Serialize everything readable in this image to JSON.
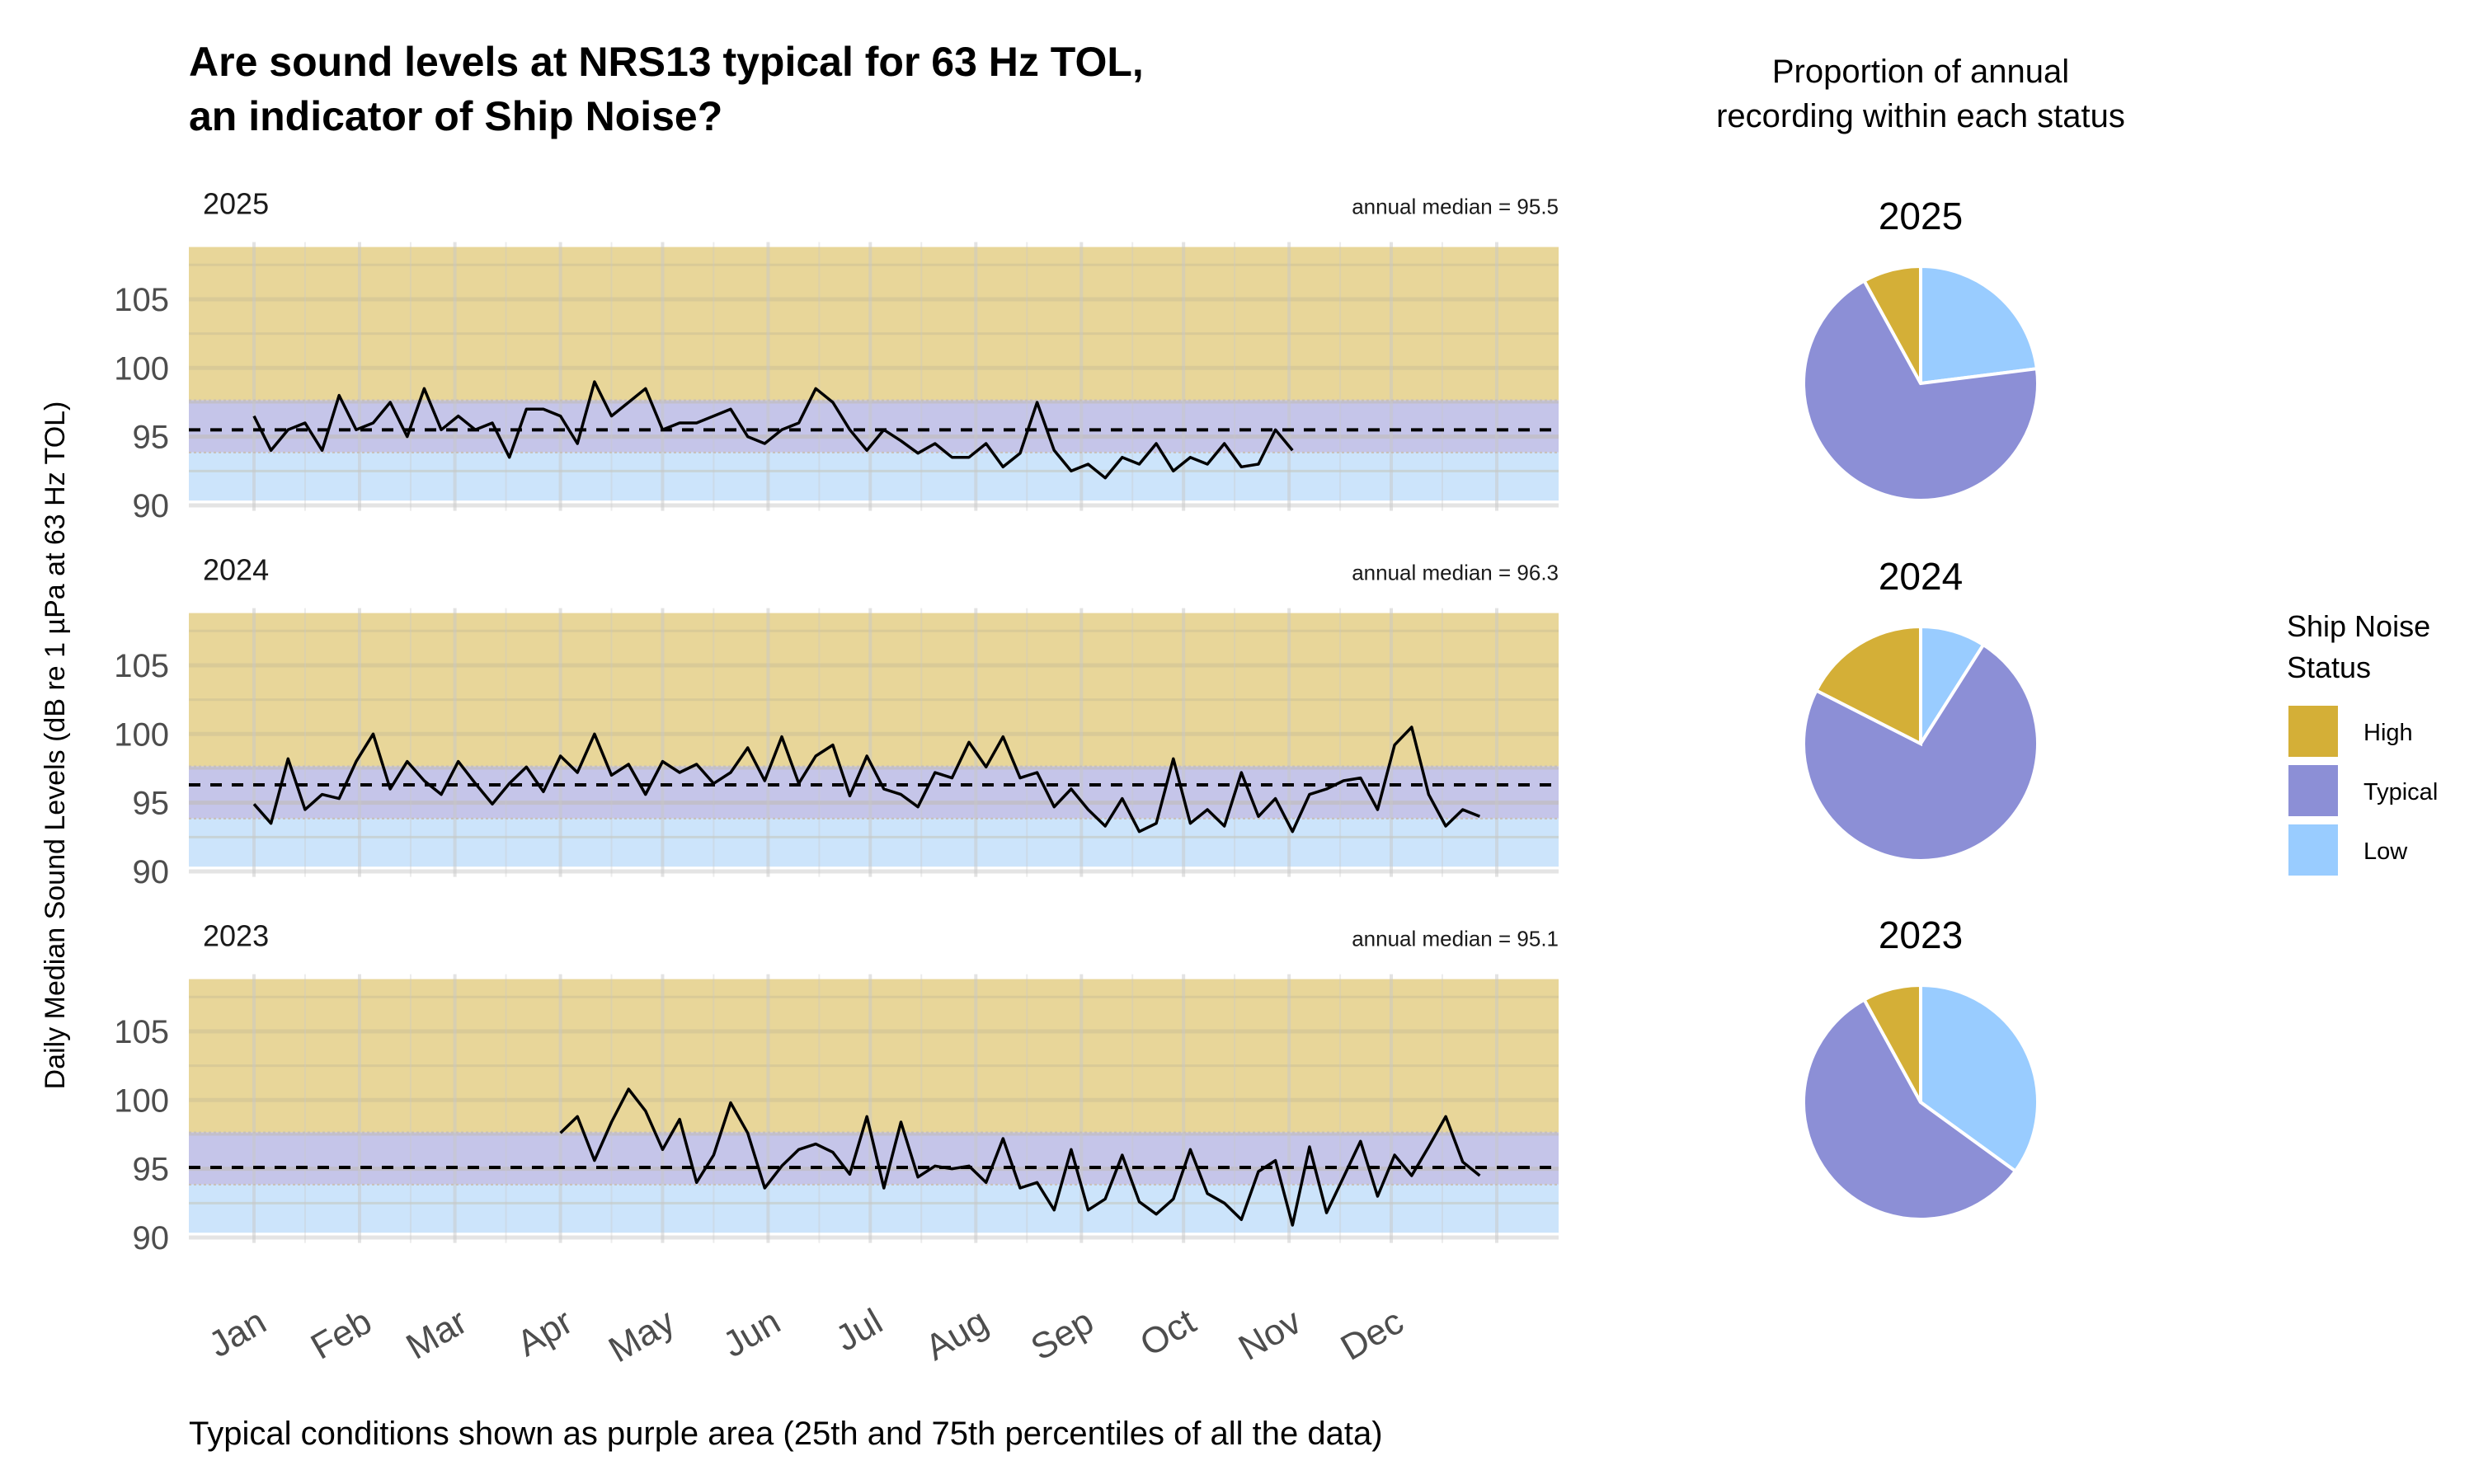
{
  "title_lines": [
    "Are sound levels at NRS13 typical for 63 Hz TOL,",
    "an indicator of Ship Noise?"
  ],
  "caption": "Typical conditions shown as purple area (25th and 75th percentiles of all the data)",
  "pie_header_lines": [
    "Proportion of annual",
    "recording within each status"
  ],
  "colors": {
    "high": "#D4AF37",
    "typical": "#8C8FD6",
    "low": "#99CCFF",
    "band_high": "#E8D699",
    "band_typical": "#C5C5E9",
    "band_low": "#CCE4FB",
    "line": "#000000"
  },
  "legend": {
    "title_lines": [
      "Ship Noise",
      "Status"
    ],
    "items": [
      {
        "label": "High",
        "color": "#D4AF37"
      },
      {
        "label": "Typical",
        "color": "#8C8FD6"
      },
      {
        "label": "Low",
        "color": "#99CCFF"
      }
    ]
  },
  "chart_data": [
    {
      "type": "line",
      "panels": "faceted by year",
      "ylabel": "Daily Median Sound Levels (dB re 1 µPa at 63 Hz TOL)",
      "ylim": [
        89.6,
        108.8
      ],
      "yticks": [
        "90",
        "95",
        "100",
        "105"
      ],
      "xticks": [
        "Jan",
        "Feb",
        "Mar",
        "Apr",
        "May",
        "Jun",
        "Jul",
        "Aug",
        "Sep",
        "Oct",
        "Nov",
        "Dec"
      ],
      "grid": true,
      "typical_range": [
        93.85,
        97.65
      ],
      "dates": [
        "01-01",
        "01-06",
        "01-11",
        "01-16",
        "01-21",
        "01-26",
        "01-31",
        "02-05",
        "02-10",
        "02-15",
        "02-20",
        "02-25",
        "03-02",
        "03-07",
        "03-12",
        "03-17",
        "03-22",
        "03-27",
        "04-01",
        "04-06",
        "04-11",
        "04-16",
        "04-21",
        "04-26",
        "05-01",
        "05-06",
        "05-11",
        "05-16",
        "05-21",
        "05-26",
        "05-31",
        "06-05",
        "06-10",
        "06-15",
        "06-20",
        "06-25",
        "06-30",
        "07-05",
        "07-10",
        "07-15",
        "07-20",
        "07-25",
        "07-30",
        "08-04",
        "08-09",
        "08-14",
        "08-19",
        "08-24",
        "08-29",
        "09-03",
        "09-08",
        "09-13",
        "09-18",
        "09-23",
        "09-28",
        "10-03",
        "10-08",
        "10-13",
        "10-18",
        "10-23",
        "10-28",
        "11-02",
        "11-07",
        "11-12",
        "11-17",
        "11-22",
        "11-27",
        "12-02",
        "12-07",
        "12-12",
        "12-17",
        "12-22",
        "12-27"
      ],
      "series": [
        {
          "name": "2025",
          "median_label": "annual median = 95.5",
          "median": 95.5,
          "values": [
            96.5,
            94,
            95.5,
            96,
            94,
            98,
            95.5,
            96,
            97.5,
            95,
            98.5,
            95.5,
            96.5,
            95.5,
            96,
            93.5,
            97,
            97,
            96.5,
            94.5,
            99,
            96.5,
            97.5,
            98.5,
            95.5,
            96,
            96,
            96.5,
            97,
            95,
            94.5,
            95.5,
            96,
            98.5,
            97.5,
            95.5,
            94,
            95.5,
            94.7,
            93.8,
            94.5,
            93.5,
            93.5,
            94.5,
            92.8,
            93.8,
            97.5,
            94,
            92.5,
            93,
            92,
            93.5,
            93,
            94.5,
            92.5,
            93.5,
            93,
            94.5,
            92.8,
            93,
            95.5,
            94,
            null,
            null,
            null,
            null,
            null,
            null,
            null,
            null,
            null,
            null,
            null
          ]
        },
        {
          "name": "2024",
          "median_label": "annual median = 96.3",
          "median": 96.3,
          "values": [
            94.9,
            93.5,
            98.2,
            94.5,
            95.6,
            95.3,
            98,
            100,
            96,
            98,
            96.6,
            95.6,
            98,
            96.4,
            94.9,
            96.4,
            97.6,
            95.8,
            98.4,
            97.2,
            100,
            97,
            97.8,
            95.6,
            98,
            97.2,
            97.8,
            96.4,
            97.2,
            99,
            96.6,
            99.8,
            96.4,
            98.4,
            99.2,
            95.5,
            98.4,
            96,
            95.6,
            94.7,
            97.2,
            96.8,
            99.4,
            97.6,
            99.8,
            96.8,
            97.2,
            94.7,
            96,
            94.5,
            93.3,
            95.3,
            92.9,
            93.5,
            98.2,
            93.5,
            94.5,
            93.3,
            97.2,
            94,
            95.3,
            92.9,
            95.6,
            96,
            96.6,
            96.8,
            94.5,
            99.2,
            100.5,
            95.6,
            93.3,
            94.5,
            94
          ]
        },
        {
          "name": "2023",
          "median_label": "annual median = 95.1",
          "median": 95.1,
          "values": [
            null,
            null,
            null,
            null,
            null,
            null,
            null,
            null,
            null,
            null,
            null,
            null,
            null,
            null,
            null,
            null,
            null,
            null,
            97.6,
            98.8,
            95.6,
            98.4,
            100.8,
            99.2,
            96.4,
            98.6,
            94,
            96,
            99.8,
            97.6,
            93.6,
            95.2,
            96.4,
            96.8,
            96.2,
            94.6,
            98.8,
            93.6,
            98.4,
            94.4,
            95.2,
            95,
            95.2,
            94,
            97.2,
            93.6,
            94,
            92,
            96.4,
            92,
            92.8,
            96,
            92.6,
            91.7,
            92.8,
            96.4,
            93.2,
            92.5,
            91.3,
            94.8,
            95.6,
            90.9,
            96.6,
            91.8,
            94.4,
            97,
            93,
            96,
            94.5,
            96.6,
            98.8,
            95.5,
            94.5
          ]
        }
      ]
    },
    {
      "type": "pie",
      "categories": [
        "Low",
        "Typical",
        "High"
      ],
      "series": [
        {
          "name": "2025",
          "values": [
            23,
            69,
            8
          ]
        },
        {
          "name": "2024",
          "values": [
            9,
            73.5,
            17.5
          ]
        },
        {
          "name": "2023",
          "values": [
            35,
            57,
            8
          ]
        }
      ]
    }
  ]
}
